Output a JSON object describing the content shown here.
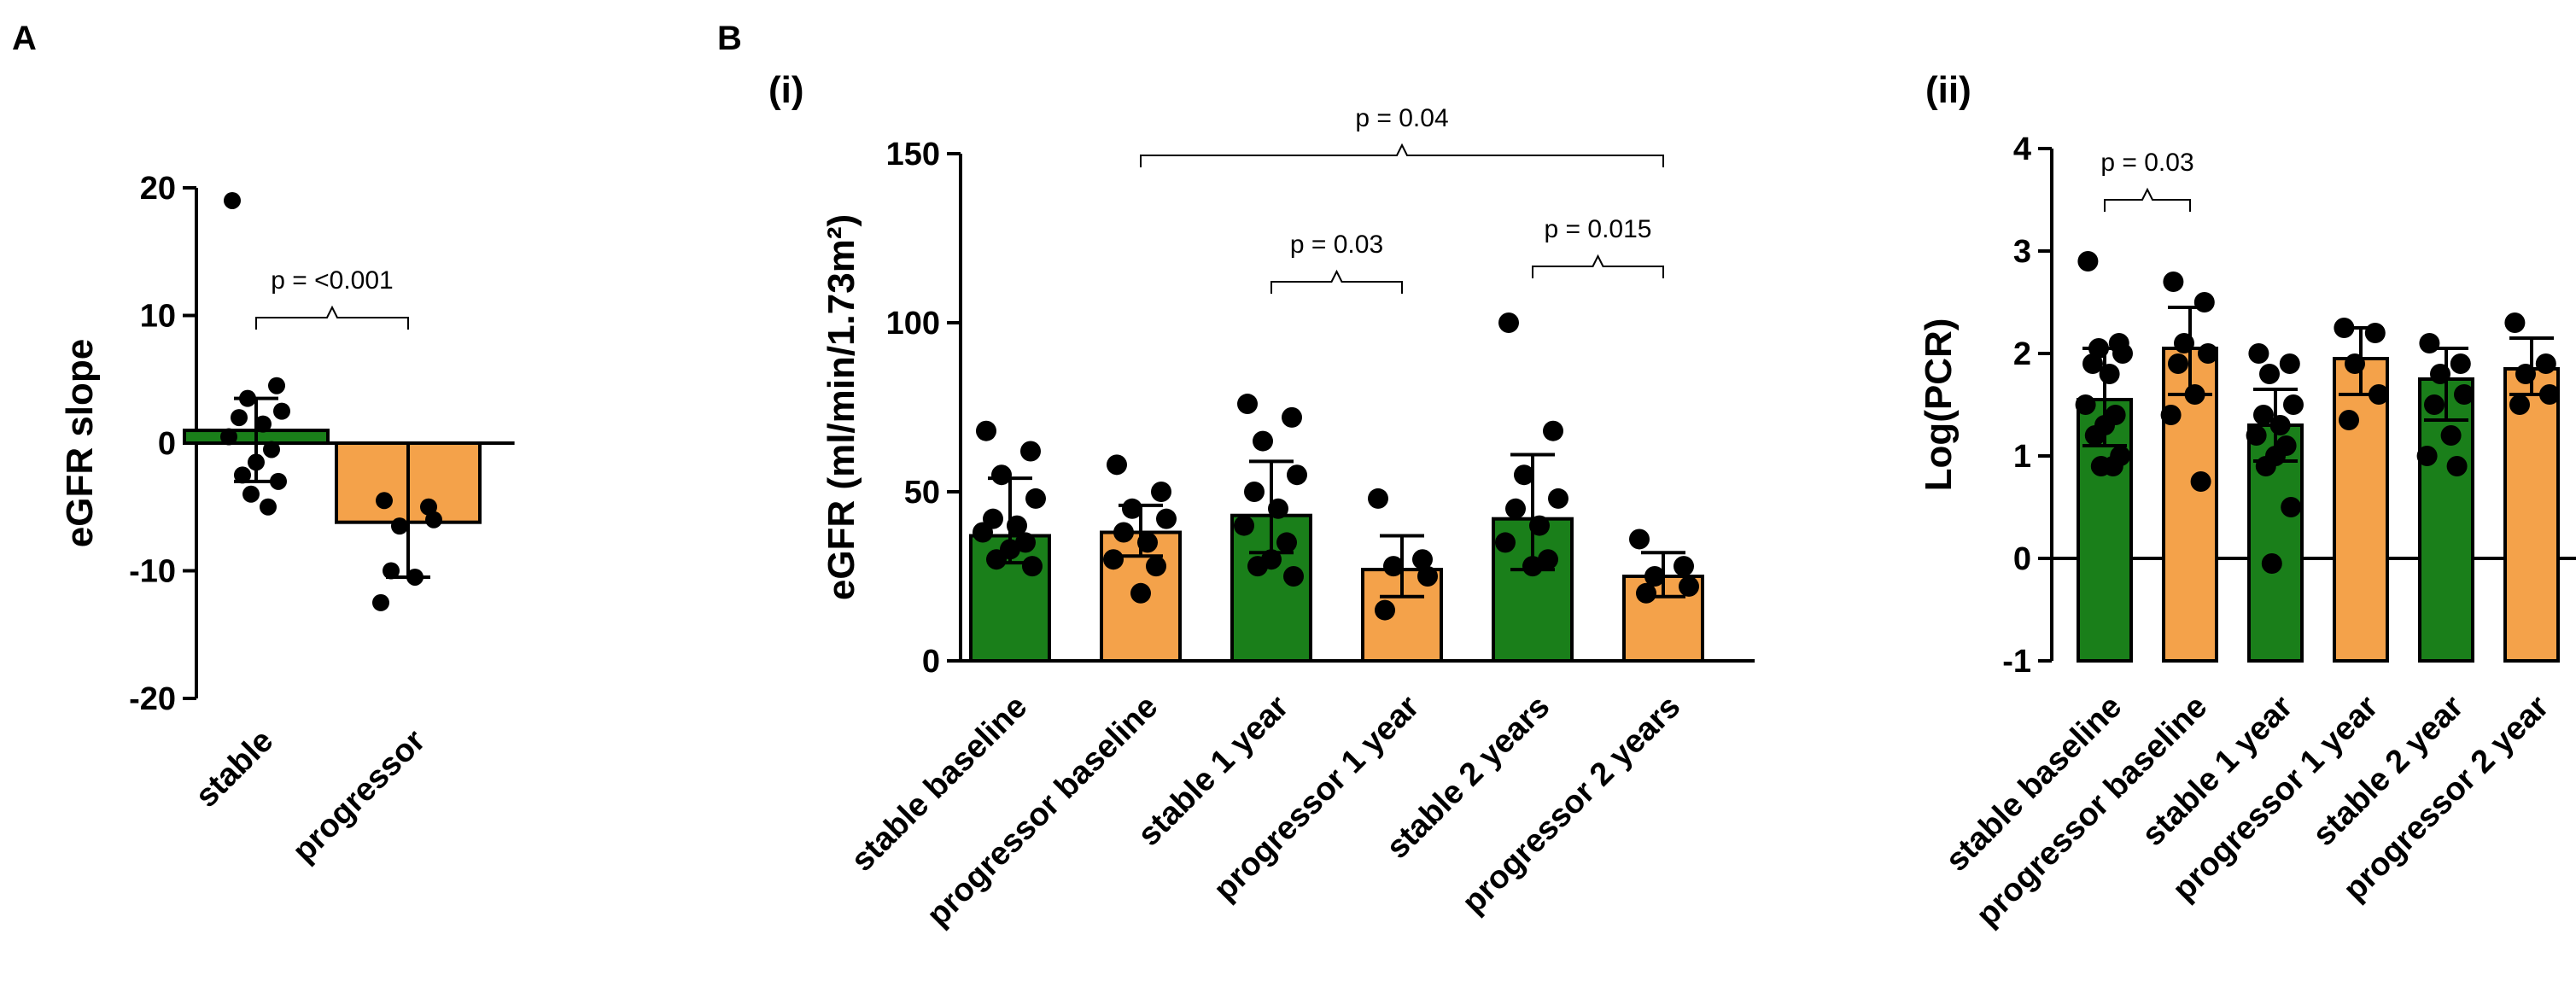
{
  "colors": {
    "stable": "#1a7f1a",
    "progressor": "#f4a24a"
  },
  "chart_data": [
    {
      "id": "A",
      "panel_label": "A",
      "type": "bar",
      "ylabel": "eGFR slope",
      "ylim": [
        -20,
        20
      ],
      "yticks": [
        -20,
        -10,
        0,
        10,
        20
      ],
      "categories": [
        "stable",
        "progressor"
      ],
      "values": [
        1.0,
        -6.2
      ],
      "errors": [
        [
          -3.0,
          3.5
        ],
        [
          -10.5,
          0.0
        ]
      ],
      "points": [
        [
          19,
          4.5,
          3.5,
          2.5,
          2,
          1.5,
          0.5,
          -0.5,
          -1.5,
          -2.5,
          -3,
          -4,
          -5
        ],
        [
          -4.5,
          -5,
          -6.5,
          -6,
          -10,
          -10.5,
          -12.5
        ]
      ],
      "annotations": [
        {
          "text": "p = <0.001",
          "from": 0,
          "to": 1
        }
      ]
    },
    {
      "id": "Bi",
      "panel_label": "B",
      "sub_label": "(i)",
      "type": "bar",
      "ylabel": "eGFR (ml/min/1.73m²)",
      "ylim": [
        0,
        150
      ],
      "yticks": [
        0,
        50,
        100,
        150
      ],
      "categories": [
        "stable baseline",
        "progressor baseline",
        "stable 1 year",
        "progressor 1 year",
        "stable 2 years",
        "progressor 2 years"
      ],
      "values": [
        37,
        38,
        43,
        27,
        42,
        25
      ],
      "errors": [
        [
          29,
          54
        ],
        [
          31,
          46
        ],
        [
          32,
          59
        ],
        [
          19,
          37
        ],
        [
          27,
          61
        ],
        [
          19,
          32
        ]
      ],
      "points": [
        [
          68,
          62,
          55,
          48,
          42,
          40,
          38,
          35,
          33,
          30,
          28
        ],
        [
          58,
          50,
          45,
          42,
          38,
          35,
          30,
          28,
          20
        ],
        [
          76,
          72,
          65,
          55,
          50,
          45,
          40,
          35,
          30,
          28,
          25
        ],
        [
          48,
          30,
          28,
          25,
          15
        ],
        [
          100,
          68,
          55,
          48,
          45,
          40,
          35,
          30,
          28
        ],
        [
          36,
          28,
          25,
          22,
          20
        ]
      ],
      "annotations": [
        {
          "text": "p = 0.04",
          "from": 1,
          "to": 5,
          "level": 3
        },
        {
          "text": "p = 0.03",
          "from": 2,
          "to": 3,
          "level": 1
        },
        {
          "text": "p = 0.015",
          "from": 4,
          "to": 5,
          "level": 2
        }
      ]
    },
    {
      "id": "Bii",
      "sub_label": "(ii)",
      "type": "bar",
      "ylabel": "Log(PCR)",
      "ylim": [
        -1,
        4
      ],
      "yticks": [
        -1,
        0,
        1,
        2,
        3,
        4
      ],
      "categories": [
        "stable baseline",
        "progressor baseline",
        "stable 1 year",
        "progressor 1 year",
        "stable 2 year",
        "progressor 2 year"
      ],
      "values": [
        1.55,
        2.05,
        1.3,
        1.95,
        1.75,
        1.85
      ],
      "errors": [
        [
          1.1,
          2.05
        ],
        [
          1.6,
          2.45
        ],
        [
          0.95,
          1.65
        ],
        [
          1.6,
          2.25
        ],
        [
          1.35,
          2.05
        ],
        [
          1.6,
          2.15
        ]
      ],
      "points": [
        [
          2.9,
          2.1,
          2.05,
          2.0,
          1.9,
          1.8,
          1.5,
          1.4,
          1.3,
          1.2,
          1.0,
          0.9,
          0.9
        ],
        [
          2.7,
          2.5,
          2.1,
          2.0,
          1.9,
          1.6,
          1.4,
          0.75
        ],
        [
          2.0,
          1.9,
          1.8,
          1.5,
          1.4,
          1.3,
          1.2,
          1.1,
          1.0,
          0.9,
          0.5,
          -0.05
        ],
        [
          2.25,
          2.2,
          1.9,
          1.6,
          1.35
        ],
        [
          2.1,
          1.9,
          1.8,
          1.6,
          1.5,
          1.2,
          1.0,
          0.9
        ],
        [
          2.3,
          1.9,
          1.8,
          1.6,
          1.5
        ]
      ],
      "annotations": [
        {
          "text": "p = 0.03",
          "from": 0,
          "to": 1
        }
      ]
    }
  ]
}
